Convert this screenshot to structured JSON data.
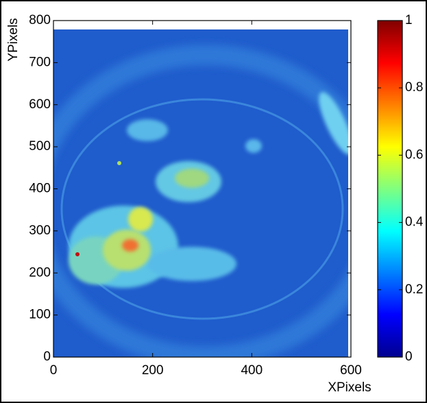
{
  "chart_data": {
    "type": "heatmap",
    "xlabel": "XPixels",
    "ylabel": "YPixels",
    "xlim": [
      0,
      600
    ],
    "xticks": [
      0,
      200,
      400,
      600
    ],
    "ylim": [
      0,
      800
    ],
    "yticks": [
      0,
      100,
      200,
      300,
      400,
      500,
      600,
      700,
      800
    ],
    "colormap": "jet",
    "clim": [
      0,
      1
    ],
    "cticks": [
      0,
      0.2,
      0.4,
      0.6,
      0.8,
      1
    ]
  }
}
